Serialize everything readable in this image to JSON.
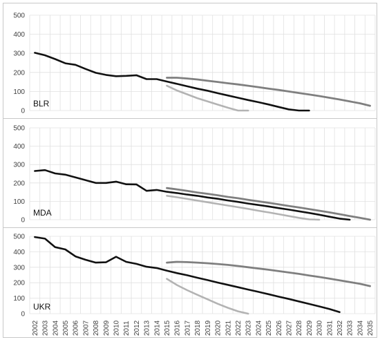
{
  "chart_data": {
    "type": "line",
    "x": [
      2002,
      2003,
      2004,
      2005,
      2006,
      2007,
      2008,
      2009,
      2010,
      2011,
      2012,
      2013,
      2014,
      2015,
      2016,
      2017,
      2018,
      2019,
      2020,
      2021,
      2022,
      2023,
      2024,
      2025,
      2026,
      2027,
      2028,
      2029,
      2030,
      2031,
      2032,
      2033,
      2034,
      2035
    ],
    "ylim": [
      0,
      500
    ],
    "yticks": [
      0,
      100,
      200,
      300,
      400,
      500
    ],
    "grid": true,
    "colors": {
      "historical": "#111111",
      "upper": "#7f7f7f",
      "lower": "#b3b3b3",
      "grid": "#e0e0e0",
      "frame": "#c8c8c8",
      "text": "#404040"
    },
    "panels": [
      {
        "label": "BLR",
        "series": [
          {
            "style": "historical",
            "x": [
              2002,
              2003,
              2004,
              2005,
              2006,
              2007,
              2008,
              2009,
              2010,
              2011,
              2012,
              2013,
              2014,
              2015,
              2016,
              2017,
              2018,
              2019,
              2020,
              2021,
              2022,
              2023,
              2024,
              2025,
              2026,
              2027,
              2028,
              2029
            ],
            "values": [
              303,
              290,
              270,
              248,
              240,
              218,
              198,
              187,
              180,
              182,
              185,
              165,
              165,
              152,
              140,
              127,
              115,
              104,
              91,
              79,
              67,
              55,
              44,
              32,
              19,
              6,
              0,
              0
            ]
          },
          {
            "style": "upper",
            "x": [
              2015,
              2016,
              2017,
              2018,
              2019,
              2020,
              2021,
              2022,
              2023,
              2024,
              2025,
              2026,
              2027,
              2028,
              2029,
              2030,
              2031,
              2032,
              2033,
              2034,
              2035
            ],
            "values": [
              172,
              172,
              168,
              163,
              156,
              150,
              143,
              137,
              130,
              123,
              115,
              108,
              100,
              92,
              84,
              76,
              67,
              58,
              48,
              38,
              25
            ]
          },
          {
            "style": "lower",
            "x": [
              2015,
              2016,
              2017,
              2018,
              2019,
              2020,
              2021,
              2022,
              2023
            ],
            "values": [
              130,
              105,
              85,
              65,
              48,
              31,
              15,
              0,
              0
            ]
          }
        ]
      },
      {
        "label": "MDA",
        "series": [
          {
            "style": "historical",
            "x": [
              2002,
              2003,
              2004,
              2005,
              2006,
              2007,
              2008,
              2009,
              2010,
              2011,
              2012,
              2013,
              2014,
              2015,
              2016,
              2017,
              2018,
              2019,
              2020,
              2021,
              2022,
              2023,
              2024,
              2025,
              2026,
              2027,
              2028,
              2029,
              2030,
              2031,
              2032,
              2033
            ],
            "values": [
              265,
              270,
              252,
              245,
              230,
              215,
              200,
              200,
              207,
              193,
              192,
              157,
              162,
              152,
              145,
              137,
              130,
              121,
              114,
              105,
              97,
              88,
              80,
              72,
              63,
              55,
              46,
              37,
              27,
              16,
              6,
              0
            ]
          },
          {
            "style": "upper",
            "x": [
              2015,
              2016,
              2017,
              2018,
              2019,
              2020,
              2021,
              2022,
              2023,
              2024,
              2025,
              2026,
              2027,
              2028,
              2029,
              2030,
              2031,
              2032,
              2033,
              2034,
              2035
            ],
            "values": [
              172,
              165,
              157,
              148,
              141,
              133,
              124,
              117,
              108,
              100,
              92,
              84,
              75,
              67,
              58,
              49,
              40,
              30,
              20,
              10,
              0
            ]
          },
          {
            "style": "lower",
            "x": [
              2015,
              2016,
              2017,
              2018,
              2019,
              2020,
              2021,
              2022,
              2023,
              2024,
              2025,
              2026,
              2027,
              2028,
              2029,
              2030
            ],
            "values": [
              130,
              122,
              113,
              104,
              95,
              86,
              77,
              68,
              59,
              49,
              40,
              30,
              20,
              10,
              2,
              0
            ]
          }
        ]
      },
      {
        "label": "UKR",
        "series": [
          {
            "style": "historical",
            "x": [
              2002,
              2003,
              2004,
              2005,
              2006,
              2007,
              2008,
              2009,
              2010,
              2011,
              2012,
              2013,
              2014,
              2015,
              2016,
              2017,
              2018,
              2019,
              2020,
              2021,
              2022,
              2023,
              2024,
              2025,
              2026,
              2027,
              2028,
              2029,
              2030,
              2031,
              2032
            ],
            "values": [
              495,
              485,
              430,
              415,
              370,
              348,
              330,
              332,
              368,
              335,
              322,
              303,
              295,
              278,
              262,
              248,
              232,
              217,
              201,
              186,
              171,
              156,
              141,
              126,
              110,
              95,
              79,
              63,
              47,
              30,
              10
            ]
          },
          {
            "style": "upper",
            "x": [
              2015,
              2016,
              2017,
              2018,
              2019,
              2020,
              2021,
              2022,
              2023,
              2024,
              2025,
              2026,
              2027,
              2028,
              2029,
              2030,
              2031,
              2032,
              2033,
              2034,
              2035
            ],
            "values": [
              330,
              335,
              333,
              330,
              326,
              321,
              315,
              308,
              300,
              292,
              284,
              275,
              266,
              257,
              247,
              237,
              227,
              215,
              204,
              193,
              178
            ]
          },
          {
            "style": "lower",
            "x": [
              2015,
              2016,
              2017,
              2018,
              2019,
              2020,
              2021,
              2022,
              2023
            ],
            "values": [
              225,
              185,
              152,
              122,
              93,
              64,
              38,
              15,
              0
            ]
          }
        ]
      }
    ]
  }
}
